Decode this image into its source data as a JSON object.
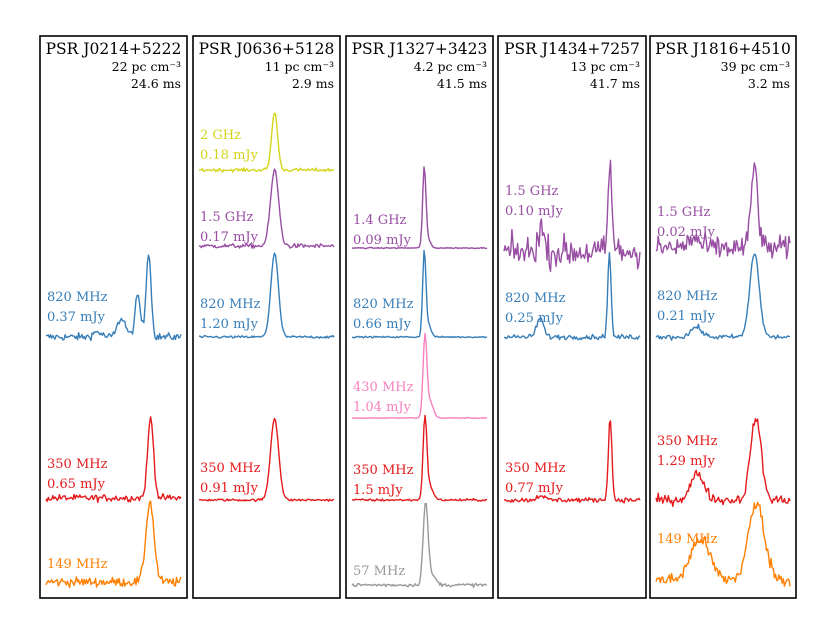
{
  "chart_data": {
    "type": "line",
    "description_axes": "none",
    "colors": {
      "2 GHz": "#d4d41c",
      "1.5 GHz": "#984ea3",
      "1.4 GHz": "#984ea3",
      "820 MHz": "#377eb8",
      "430 MHz": "#f781bf",
      "350 MHz": "#e41a1c",
      "149 MHz": "#ff7f00",
      "57 MHz": "#999999"
    },
    "panels": [
      {
        "name": "PSR J0214+5222",
        "dm": "22 pc cm⁻³",
        "period": "24.6 ms",
        "profiles": [
          {
            "freq": "820 MHz",
            "flux": "0.37 mJy",
            "noise": 0.03,
            "components": [
              {
                "c": 0.76,
                "w": 0.018,
                "a": 1.0
              },
              {
                "c": 0.68,
                "w": 0.02,
                "a": 0.48
              },
              {
                "c": 0.56,
                "w": 0.03,
                "a": 0.22
              },
              {
                "c": 0.38,
                "w": 0.03,
                "a": 0.06
              }
            ]
          },
          {
            "freq": "350 MHz",
            "flux": "0.65 mJy",
            "noise": 0.03,
            "components": [
              {
                "c": 0.775,
                "w": 0.022,
                "a": 1.0
              }
            ]
          },
          {
            "freq": "149 MHz",
            "flux": "",
            "noise": 0.04,
            "components": [
              {
                "c": 0.77,
                "w": 0.03,
                "a": 1.0
              }
            ]
          }
        ]
      },
      {
        "name": "PSR J0636+5128",
        "dm": "11 pc cm⁻³",
        "period": "2.9 ms",
        "profiles": [
          {
            "freq": "2 GHz",
            "flux": "0.18 mJy",
            "noise": 0.02,
            "components": [
              {
                "c": 0.56,
                "w": 0.022,
                "a": 1.0
              }
            ]
          },
          {
            "freq": "1.5 GHz",
            "flux": "0.17 mJy",
            "noise": 0.02,
            "components": [
              {
                "c": 0.56,
                "w": 0.03,
                "a": 1.0
              }
            ]
          },
          {
            "freq": "820 MHz",
            "flux": "1.20 mJy",
            "noise": 0.01,
            "components": [
              {
                "c": 0.56,
                "w": 0.028,
                "a": 1.0
              }
            ]
          },
          {
            "freq": "350 MHz",
            "flux": "0.91 mJy",
            "noise": 0.01,
            "components": [
              {
                "c": 0.56,
                "w": 0.03,
                "a": 1.0
              }
            ]
          }
        ]
      },
      {
        "name": "PSR J1327+3423",
        "dm": "4.2 pc cm⁻³",
        "period": "41.5 ms",
        "profiles": [
          {
            "freq": "1.4 GHz",
            "flux": "0.09 mJy",
            "noise": 0.005,
            "components": [
              {
                "c": 0.535,
                "w": 0.012,
                "a": 1.0
              },
              {
                "c": 0.56,
                "w": 0.02,
                "a": 0.12
              }
            ]
          },
          {
            "freq": "820 MHz",
            "flux": "0.66 mJy",
            "noise": 0.006,
            "components": [
              {
                "c": 0.535,
                "w": 0.012,
                "a": 1.0
              },
              {
                "c": 0.565,
                "w": 0.02,
                "a": 0.15
              }
            ]
          },
          {
            "freq": "430 MHz",
            "flux": "1.04 mJy",
            "noise": 0.004,
            "components": [
              {
                "c": 0.54,
                "w": 0.014,
                "a": 1.0
              },
              {
                "c": 0.575,
                "w": 0.025,
                "a": 0.22
              }
            ]
          },
          {
            "freq": "350 MHz",
            "flux": "1.5 mJy",
            "noise": 0.01,
            "components": [
              {
                "c": 0.54,
                "w": 0.014,
                "a": 1.0
              },
              {
                "c": 0.575,
                "w": 0.025,
                "a": 0.18
              }
            ]
          },
          {
            "freq": "57 MHz",
            "flux": "",
            "noise": 0.015,
            "components": [
              {
                "c": 0.545,
                "w": 0.018,
                "a": 1.0
              },
              {
                "c": 0.59,
                "w": 0.03,
                "a": 0.12
              }
            ]
          }
        ]
      },
      {
        "name": "PSR J1434+7257",
        "dm": "13 pc cm⁻³",
        "period": "41.7 ms",
        "profiles": [
          {
            "freq": "1.5 GHz",
            "flux": "0.10 mJy",
            "noise": 0.12,
            "components": [
              {
                "c": 0.78,
                "w": 0.014,
                "a": 1.0
              },
              {
                "c": 0.27,
                "w": 0.02,
                "a": 0.3
              }
            ]
          },
          {
            "freq": "820 MHz",
            "flux": "0.25 mJy",
            "noise": 0.02,
            "components": [
              {
                "c": 0.775,
                "w": 0.012,
                "a": 1.0
              },
              {
                "c": 0.265,
                "w": 0.025,
                "a": 0.22
              }
            ]
          },
          {
            "freq": "350 MHz",
            "flux": "0.77 mJy",
            "noise": 0.02,
            "components": [
              {
                "c": 0.78,
                "w": 0.013,
                "a": 1.0
              },
              {
                "c": 0.27,
                "w": 0.025,
                "a": 0.06
              }
            ]
          }
        ]
      },
      {
        "name": "PSR J1816+4510",
        "dm": "39 pc cm⁻³",
        "period": "3.2 ms",
        "profiles": [
          {
            "freq": "1.5 GHz",
            "flux": "0.02 mJy",
            "noise": 0.1,
            "components": [
              {
                "c": 0.735,
                "w": 0.025,
                "a": 1.0
              },
              {
                "c": 0.28,
                "w": 0.04,
                "a": 0.12
              }
            ]
          },
          {
            "freq": "820 MHz",
            "flux": "0.21 mJy",
            "noise": 0.02,
            "components": [
              {
                "c": 0.735,
                "w": 0.035,
                "a": 1.0
              },
              {
                "c": 0.3,
                "w": 0.04,
                "a": 0.12
              }
            ]
          },
          {
            "freq": "350 MHz",
            "flux": "1.29 mJy",
            "noise": 0.04,
            "components": [
              {
                "c": 0.745,
                "w": 0.04,
                "a": 1.0
              },
              {
                "c": 0.31,
                "w": 0.05,
                "a": 0.32
              }
            ]
          },
          {
            "freq": "149 MHz",
            "flux": "",
            "noise": 0.06,
            "components": [
              {
                "c": 0.75,
                "w": 0.06,
                "a": 1.0
              },
              {
                "c": 0.33,
                "w": 0.07,
                "a": 0.55
              }
            ]
          }
        ]
      }
    ]
  }
}
